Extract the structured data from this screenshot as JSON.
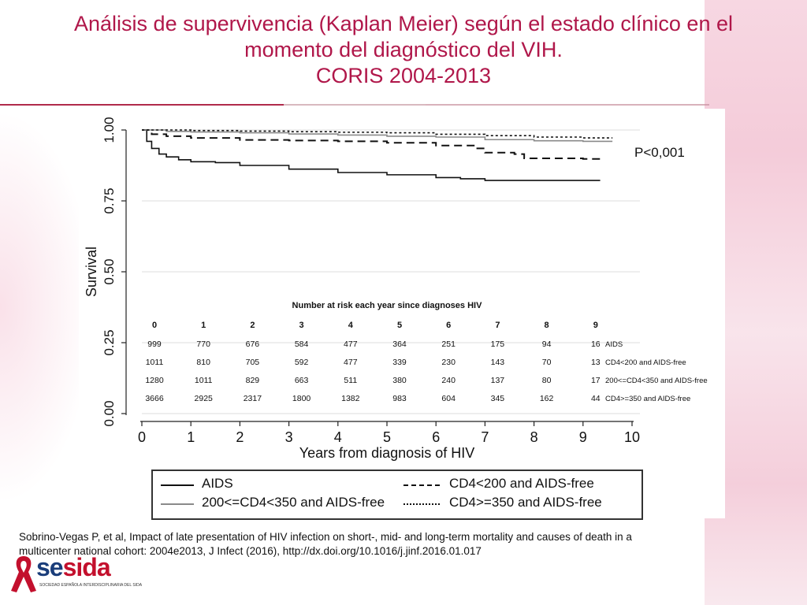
{
  "title": {
    "line1": "Análisis de supervivencia (Kaplan Meier) según el estado clínico en el",
    "line2": "momento del diagnóstico del VIH.",
    "line3": "CORIS  2004-2013"
  },
  "citation": {
    "line1": "Sobrino-Vegas P, et al, Impact of late presentation of HIV infection on short-, mid- and long-term mortality and causes of death in a",
    "line2": "multicenter national cohort: 2004e2013, J Infect (2016), http://dx.doi.org/10.1016/j.jinf.2016.01.017"
  },
  "logo": {
    "text_part1": "se",
    "text_part2": "sida",
    "subtitle": "SOCIEDAD ESPAÑOLA INTERDISCIPLINARIA DEL SIDA",
    "ribbon_icon": "red-ribbon-icon",
    "brand_red": "#c3102d",
    "brand_blue": "#1a3d7a"
  },
  "chart_data": {
    "type": "line",
    "xlabel": "Years from diagnosis of HIV",
    "ylabel": "Survival",
    "xlim": [
      0,
      10
    ],
    "ylim": [
      0,
      1
    ],
    "x_ticks": [
      "0",
      "1",
      "2",
      "3",
      "4",
      "5",
      "6",
      "7",
      "8",
      "9",
      "10"
    ],
    "y_ticks": [
      "0.00",
      "0.25",
      "0.50",
      "0.75",
      "1.00"
    ],
    "annotation": "P<0,001",
    "series": [
      {
        "name": "AIDS",
        "style": "solid",
        "color": "#111111",
        "points": [
          [
            0,
            1.0
          ],
          [
            0.1,
            0.96
          ],
          [
            0.2,
            0.935
          ],
          [
            0.35,
            0.915
          ],
          [
            0.5,
            0.905
          ],
          [
            0.75,
            0.895
          ],
          [
            1,
            0.888
          ],
          [
            1.5,
            0.885
          ],
          [
            2,
            0.875
          ],
          [
            3,
            0.862
          ],
          [
            4,
            0.85
          ],
          [
            5,
            0.842
          ],
          [
            6,
            0.832
          ],
          [
            6.5,
            0.828
          ],
          [
            7,
            0.822
          ],
          [
            8,
            0.822
          ],
          [
            9,
            0.822
          ],
          [
            9.35,
            0.822
          ]
        ]
      },
      {
        "name": "CD4<200 and AIDS-free",
        "style": "dashed",
        "color": "#111111",
        "points": [
          [
            0,
            1.0
          ],
          [
            0.2,
            0.985
          ],
          [
            0.5,
            0.978
          ],
          [
            1,
            0.972
          ],
          [
            2,
            0.965
          ],
          [
            3,
            0.963
          ],
          [
            4,
            0.96
          ],
          [
            5,
            0.955
          ],
          [
            6,
            0.945
          ],
          [
            6.8,
            0.935
          ],
          [
            7,
            0.92
          ],
          [
            7.6,
            0.915
          ],
          [
            7.8,
            0.9
          ],
          [
            9,
            0.898
          ],
          [
            9.35,
            0.898
          ]
        ]
      },
      {
        "name": "200<=CD4<350 and AIDS-free",
        "style": "solid-gray",
        "color": "#8a8a8a",
        "points": [
          [
            0,
            1.0
          ],
          [
            0.5,
            0.995
          ],
          [
            1,
            0.993
          ],
          [
            2,
            0.99
          ],
          [
            3,
            0.986
          ],
          [
            4,
            0.982
          ],
          [
            5,
            0.978
          ],
          [
            6,
            0.975
          ],
          [
            7,
            0.966
          ],
          [
            8,
            0.962
          ],
          [
            9,
            0.96
          ],
          [
            9.6,
            0.96
          ]
        ]
      },
      {
        "name": "CD4>=350 and AIDS-free",
        "style": "dotted",
        "color": "#111111",
        "points": [
          [
            0,
            1.0
          ],
          [
            1,
            0.998
          ],
          [
            2,
            0.996
          ],
          [
            3,
            0.994
          ],
          [
            4,
            0.992
          ],
          [
            5,
            0.99
          ],
          [
            6,
            0.985
          ],
          [
            7,
            0.98
          ],
          [
            8,
            0.975
          ],
          [
            9,
            0.972
          ],
          [
            9.6,
            0.972
          ]
        ]
      }
    ],
    "risk_table": {
      "title": "Number at risk each year since diagnoses HIV",
      "years": [
        "0",
        "1",
        "2",
        "3",
        "4",
        "5",
        "6",
        "7",
        "8",
        "9"
      ],
      "rows": [
        {
          "label": "AIDS",
          "values": [
            "999",
            "770",
            "676",
            "584",
            "477",
            "364",
            "251",
            "175",
            "94",
            "16"
          ]
        },
        {
          "label": "CD4<200 and AIDS-free",
          "values": [
            "1011",
            "810",
            "705",
            "592",
            "477",
            "339",
            "230",
            "143",
            "70",
            "13"
          ]
        },
        {
          "label": "200<=CD4<350 and AIDS-free",
          "values": [
            "1280",
            "1011",
            "829",
            "663",
            "511",
            "380",
            "240",
            "137",
            "80",
            "17"
          ]
        },
        {
          "label": "CD4>=350 and AIDS-free",
          "values": [
            "3666",
            "2925",
            "2317",
            "1800",
            "1382",
            "983",
            "604",
            "345",
            "162",
            "44"
          ]
        }
      ]
    },
    "legend": {
      "placement": "bottom",
      "entries": [
        {
          "label": "AIDS",
          "style": "solid"
        },
        {
          "label": "CD4<200 and AIDS-free",
          "style": "dashed"
        },
        {
          "label": "200<=CD4<350 and AIDS-free",
          "style": "solid-gray"
        },
        {
          "label": "CD4>=350 and AIDS-free",
          "style": "dotted"
        }
      ]
    }
  }
}
